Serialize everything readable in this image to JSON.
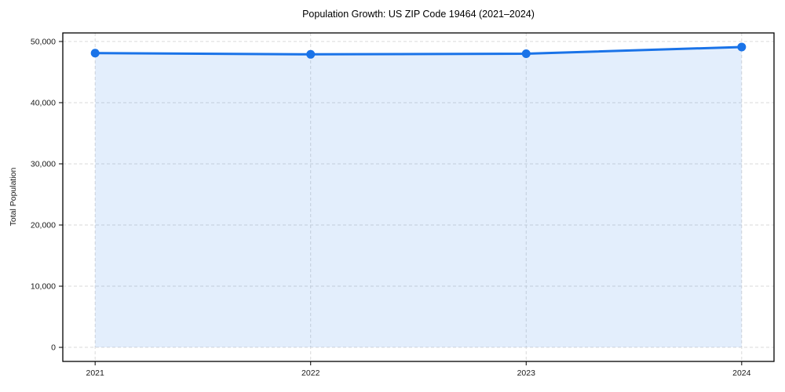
{
  "chart": {
    "colors": {
      "line": "#1a73e8",
      "fill": "rgba(26, 115, 232, 0.12)",
      "grid": "#d9d9d9",
      "spine": "#000000",
      "text": "#1a1a1a"
    }
  },
  "chart_data": {
    "type": "line",
    "title": "Population Growth: US ZIP Code 19464 (2021–2024)",
    "xlabel": "",
    "ylabel": "Total Population",
    "x": [
      2021,
      2022,
      2023,
      2024
    ],
    "series": [
      {
        "name": "Total Population",
        "values": [
          48100,
          47900,
          48000,
          49100
        ]
      }
    ],
    "xtick_labels": [
      "2021",
      "2022",
      "2023",
      "2024"
    ],
    "yticks": [
      0,
      10000,
      20000,
      30000,
      40000,
      50000
    ],
    "ytick_labels": [
      "0",
      "10,000",
      "20,000",
      "30,000",
      "40,000",
      "50,000"
    ],
    "xlim": [
      2020.85,
      2024.15
    ],
    "ylim": [
      -2300,
      51400
    ],
    "grid": true,
    "grid_style": "dashed",
    "legend": "none",
    "area_fill": true,
    "area_fill_baseline": 0,
    "markers": true
  }
}
